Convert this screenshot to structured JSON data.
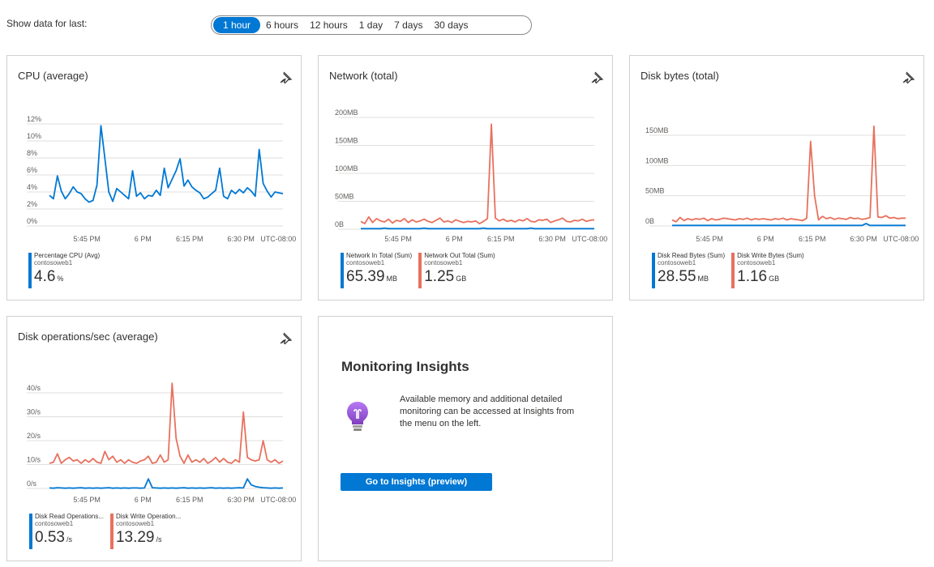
{
  "time_range": {
    "label": "Show data for last:",
    "options": [
      "1 hour",
      "6 hours",
      "12 hours",
      "1 day",
      "7 days",
      "30 days"
    ],
    "selected": "1 hour"
  },
  "colors": {
    "blue": "#0078d4",
    "orange": "#e8715e",
    "accent": "#0078d4"
  },
  "tiles": {
    "cpu": {
      "title": "CPU (average)",
      "legend": [
        {
          "name": "Percentage CPU (Avg)",
          "resource": "contosoweb1",
          "value": "4.6",
          "unit": "%"
        }
      ]
    },
    "network": {
      "title": "Network (total)",
      "legend": [
        {
          "name": "Network In Total (Sum)",
          "resource": "contosoweb1",
          "value": "65.39",
          "unit": "MB"
        },
        {
          "name": "Network Out Total (Sum)",
          "resource": "contosoweb1",
          "value": "1.25",
          "unit": "GB"
        }
      ]
    },
    "disk_bytes": {
      "title": "Disk bytes (total)",
      "legend": [
        {
          "name": "Disk Read Bytes (Sum)",
          "resource": "contosoweb1",
          "value": "28.55",
          "unit": "MB"
        },
        {
          "name": "Disk Write Bytes (Sum)",
          "resource": "contosoweb1",
          "value": "1.16",
          "unit": "GB"
        }
      ]
    },
    "disk_ops": {
      "title": "Disk operations/sec (average)",
      "legend": [
        {
          "name": "Disk Read Operations...",
          "resource": "contosoweb1",
          "value": "0.53",
          "unit": "/s"
        },
        {
          "name": "Disk Write Operation...",
          "resource": "contosoweb1",
          "value": "13.29",
          "unit": "/s"
        }
      ]
    },
    "insights": {
      "title": "Monitoring Insights",
      "text": "Available memory and additional detailed monitoring can be accessed at Insights from the menu on the left.",
      "button": "Go to Insights (preview)"
    }
  },
  "chart_data": [
    {
      "type": "line",
      "y_ticks": [
        "0%",
        "2%",
        "4%",
        "6%",
        "8%",
        "10%",
        "12%"
      ],
      "ylim": [
        0,
        12
      ],
      "x_ticks": [
        "5:45 PM",
        "6 PM",
        "6:15 PM",
        "6:30 PM",
        "UTC-08:00"
      ],
      "series": [
        {
          "name": "Percentage CPU (Avg)",
          "color": "#0078d4",
          "values": [
            3.6,
            3.2,
            5.9,
            4.1,
            3.2,
            3.8,
            4.6,
            4.0,
            3.8,
            3.2,
            2.8,
            3.0,
            4.8,
            11.8,
            8.0,
            4.0,
            2.9,
            4.4,
            4.0,
            3.6,
            3.2,
            6.5,
            3.5,
            3.9,
            3.2,
            3.6,
            3.5,
            4.2,
            3.6,
            6.8,
            4.5,
            5.5,
            6.5,
            7.9,
            4.7,
            5.4,
            4.6,
            4.2,
            3.9,
            3.2,
            3.4,
            3.8,
            4.2,
            6.8,
            3.5,
            3.2,
            4.2,
            3.8,
            4.3,
            3.9,
            4.5,
            4.1,
            3.5,
            9.0,
            5.0,
            4.1,
            3.4,
            4.0,
            3.9,
            3.8
          ]
        }
      ]
    },
    {
      "type": "line",
      "y_ticks": [
        "0B",
        "50MB",
        "100MB",
        "150MB",
        "200MB"
      ],
      "ylim": [
        0,
        200
      ],
      "x_ticks": [
        "5:45 PM",
        "6 PM",
        "6:15 PM",
        "6:30 PM",
        "UTC-08:00"
      ],
      "series": [
        {
          "name": "Network In Total (Sum)",
          "color": "#0078d4",
          "values": [
            1,
            1,
            1,
            1,
            1,
            1,
            2,
            1,
            1,
            1,
            1,
            1,
            1,
            1,
            1,
            1,
            2,
            1,
            1,
            1,
            1,
            1,
            1,
            1,
            1,
            1,
            1,
            1,
            1,
            1,
            1,
            2,
            1,
            1,
            1,
            1,
            1,
            1,
            1,
            1,
            1,
            1,
            1,
            2,
            1,
            1,
            1,
            1,
            1,
            1,
            1,
            1,
            1,
            1,
            1,
            1,
            1,
            1,
            1,
            1
          ]
        },
        {
          "name": "Network Out Total (Sum)",
          "color": "#e8715e",
          "values": [
            14,
            10,
            22,
            12,
            19,
            15,
            13,
            18,
            11,
            16,
            14,
            19,
            12,
            17,
            13,
            15,
            18,
            14,
            12,
            16,
            20,
            13,
            15,
            12,
            17,
            14,
            12,
            14,
            13,
            15,
            10,
            14,
            19,
            188,
            20,
            15,
            18,
            14,
            16,
            13,
            17,
            15,
            19,
            14,
            13,
            17,
            16,
            18,
            12,
            15,
            17,
            20,
            14,
            13,
            16,
            15,
            18,
            14,
            16,
            17
          ]
        }
      ]
    },
    {
      "type": "line",
      "y_ticks": [
        "0B",
        "50MB",
        "100MB",
        "150MB"
      ],
      "ylim": [
        0,
        150
      ],
      "x_ticks": [
        "5:45 PM",
        "6 PM",
        "6:15 PM",
        "6:30 PM",
        "UTC-08:00"
      ],
      "series": [
        {
          "name": "Disk Read Bytes (Sum)",
          "color": "#0078d4",
          "values": [
            1,
            1,
            1,
            1,
            1,
            1,
            1,
            1,
            1,
            1,
            1,
            1,
            1,
            1,
            1,
            1,
            1,
            1,
            1,
            1,
            1,
            1,
            1,
            1,
            1,
            1,
            1,
            1,
            1,
            1,
            1,
            1,
            1,
            1,
            1,
            1,
            1,
            1,
            1,
            1,
            1,
            1,
            1,
            1,
            1,
            1,
            1,
            1,
            1,
            4,
            1,
            1,
            1,
            1,
            1,
            1,
            1,
            1,
            1,
            1
          ]
        },
        {
          "name": "Disk Write Bytes (Sum)",
          "color": "#e8715e",
          "values": [
            10,
            7,
            14,
            9,
            12,
            10,
            12,
            11,
            13,
            9,
            12,
            10,
            11,
            13,
            12,
            11,
            10,
            12,
            11,
            13,
            10,
            12,
            11,
            12,
            11,
            10,
            12,
            11,
            13,
            10,
            12,
            11,
            10,
            9,
            13,
            140,
            50,
            10,
            16,
            12,
            14,
            11,
            13,
            12,
            11,
            14,
            12,
            13,
            11,
            12,
            14,
            165,
            15,
            14,
            17,
            13,
            14,
            12,
            13,
            13
          ]
        }
      ]
    },
    {
      "type": "line",
      "y_ticks": [
        "0/s",
        "10/s",
        "20/s",
        "30/s",
        "40/s"
      ],
      "ylim": [
        0,
        40
      ],
      "x_ticks": [
        "5:45 PM",
        "6 PM",
        "6:15 PM",
        "6:30 PM",
        "UTC-08:00"
      ],
      "series": [
        {
          "name": "Disk Read Operations...",
          "color": "#0078d4",
          "values": [
            0.2,
            0.1,
            0.3,
            0.2,
            0.1,
            0.2,
            0.1,
            0.2,
            0.3,
            0.1,
            0.2,
            0.1,
            0.2,
            0.1,
            0.2,
            0.3,
            0.1,
            0.2,
            0.1,
            0.2,
            0.1,
            0.2,
            0.2,
            0.1,
            0.2,
            4.0,
            0.3,
            0.2,
            0.1,
            0.2,
            0.1,
            0.2,
            0.1,
            0.2,
            0.3,
            0.1,
            0.2,
            0.1,
            0.2,
            0.1,
            0.2,
            0.3,
            0.1,
            0.2,
            0.1,
            0.2,
            0.1,
            0.2,
            0.3,
            0.2,
            4.0,
            1.5,
            0.8,
            0.5,
            0.3,
            0.2,
            0.1,
            0.2,
            0.1,
            0.2
          ]
        },
        {
          "name": "Disk Write Operation...",
          "color": "#e8715e",
          "values": [
            10.5,
            11,
            14.5,
            10.5,
            12,
            13,
            11.5,
            12,
            10.5,
            12,
            11,
            12.5,
            11,
            10.5,
            15.5,
            12,
            13.5,
            11,
            12,
            10.5,
            12,
            11,
            10.5,
            11.5,
            12,
            13.5,
            10.5,
            11,
            14,
            11,
            12,
            44,
            21,
            13.5,
            10.5,
            14,
            11,
            12,
            11,
            12.5,
            10.5,
            11.5,
            13,
            11,
            12.5,
            11,
            10.5,
            12,
            11,
            32,
            13,
            12,
            11.5,
            12,
            20,
            12,
            11,
            12,
            10.5,
            11.5
          ]
        }
      ]
    }
  ]
}
